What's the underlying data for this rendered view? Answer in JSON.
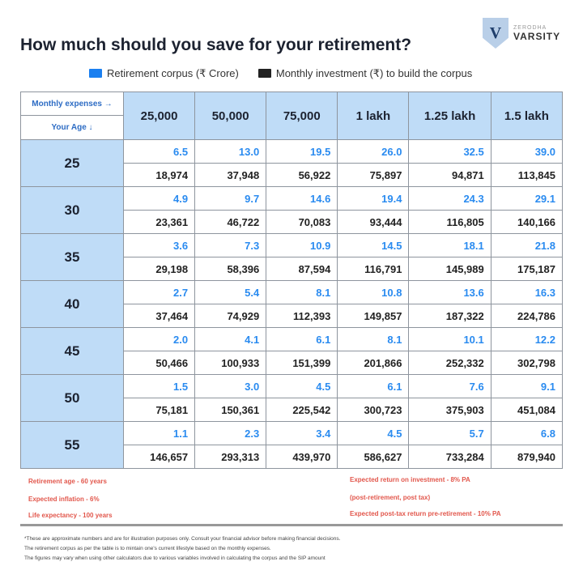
{
  "title": "How much should you save for your retirement?",
  "logo": {
    "top": "ZERODHA",
    "name": "VARSITY",
    "letter": "V"
  },
  "legend": {
    "corpus": "Retirement corpus (₹ Crore)",
    "investment": "Monthly investment (₹) to build the corpus",
    "colors": {
      "corpus": "#1a7ff0",
      "investment": "#222222"
    }
  },
  "table": {
    "corner_top": "Monthly expenses →",
    "corner_bottom": "Your Age ↓",
    "columns": [
      "25,000",
      "50,000",
      "75,000",
      "1 lakh",
      "1.25 lakh",
      "1.5 lakh"
    ],
    "rows": [
      {
        "age": "25",
        "corpus": [
          "6.5",
          "13.0",
          "19.5",
          "26.0",
          "32.5",
          "39.0"
        ],
        "investment": [
          "18,974",
          "37,948",
          "56,922",
          "75,897",
          "94,871",
          "113,845"
        ]
      },
      {
        "age": "30",
        "corpus": [
          "4.9",
          "9.7",
          "14.6",
          "19.4",
          "24.3",
          "29.1"
        ],
        "investment": [
          "23,361",
          "46,722",
          "70,083",
          "93,444",
          "116,805",
          "140,166"
        ]
      },
      {
        "age": "35",
        "corpus": [
          "3.6",
          "7.3",
          "10.9",
          "14.5",
          "18.1",
          "21.8"
        ],
        "investment": [
          "29,198",
          "58,396",
          "87,594",
          "116,791",
          "145,989",
          "175,187"
        ]
      },
      {
        "age": "40",
        "corpus": [
          "2.7",
          "5.4",
          "8.1",
          "10.8",
          "13.6",
          "16.3"
        ],
        "investment": [
          "37,464",
          "74,929",
          "112,393",
          "149,857",
          "187,322",
          "224,786"
        ]
      },
      {
        "age": "45",
        "corpus": [
          "2.0",
          "4.1",
          "6.1",
          "8.1",
          "10.1",
          "12.2"
        ],
        "investment": [
          "50,466",
          "100,933",
          "151,399",
          "201,866",
          "252,332",
          "302,798"
        ]
      },
      {
        "age": "50",
        "corpus": [
          "1.5",
          "3.0",
          "4.5",
          "6.1",
          "7.6",
          "9.1"
        ],
        "investment": [
          "75,181",
          "150,361",
          "225,542",
          "300,723",
          "375,903",
          "451,084"
        ]
      },
      {
        "age": "55",
        "corpus": [
          "1.1",
          "2.3",
          "3.4",
          "4.5",
          "5.7",
          "6.8"
        ],
        "investment": [
          "146,657",
          "293,313",
          "439,970",
          "586,627",
          "733,284",
          "879,940"
        ]
      }
    ]
  },
  "assumptions": {
    "left": [
      "Retirement age - 60 years",
      "Expected inflation - 6%",
      "Life expectancy - 100 years"
    ],
    "right": [
      "Expected return on investment - 8% PA",
      "(post-retirement, post tax)",
      "Expected post-tax return pre-retirement - 10% PA"
    ]
  },
  "notes": [
    "*These are approximate numbers and are for illustration purposes only. Consult your financial advisor before making financial decisions.",
    "The retirement corpus as per the table is to mintain one's current lifestyle based on the monthly expenses.",
    "The figures may vary when using other calculators due to various variables involved in calculating the corpus and the SIP amount"
  ]
}
